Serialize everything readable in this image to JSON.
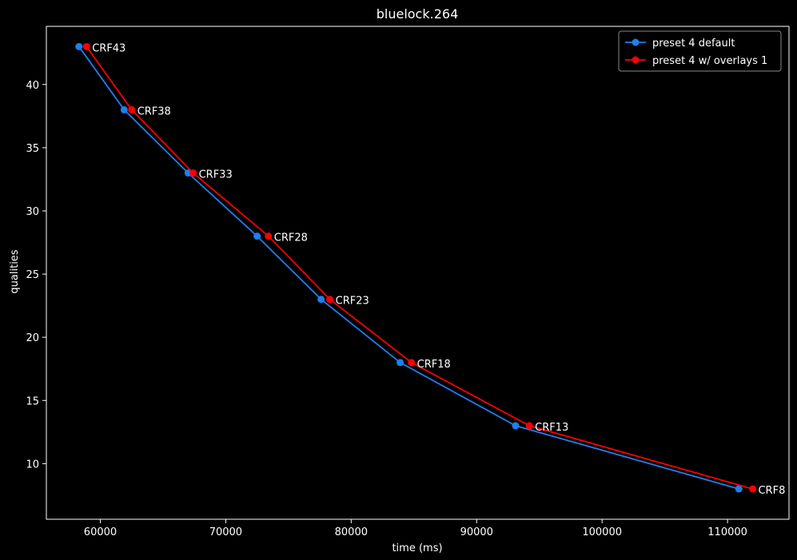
{
  "chart_data": {
    "type": "line",
    "title": "bluelock.264",
    "xlabel": "time (ms)",
    "ylabel": "qualities",
    "xlim": [
      55700,
      114900
    ],
    "ylim": [
      5.6,
      44.6
    ],
    "xticks": [
      60000,
      70000,
      80000,
      90000,
      100000,
      110000
    ],
    "yticks": [
      10,
      15,
      20,
      25,
      30,
      35,
      40
    ],
    "grid": false,
    "legend_position": "top-right",
    "series": [
      {
        "name": "preset 4 default",
        "color": "#1f7fef",
        "x": [
          58300,
          61900,
          67000,
          72500,
          77600,
          83900,
          93100,
          110900
        ],
        "y": [
          43,
          38,
          33,
          28,
          23,
          18,
          13,
          8
        ]
      },
      {
        "name": "preset 4 w/ overlays 1",
        "color": "#ff0000",
        "x": [
          58900,
          62500,
          67400,
          73400,
          78300,
          84800,
          94200,
          112000
        ],
        "y": [
          43,
          38,
          33,
          28,
          23,
          18,
          13,
          8
        ]
      }
    ],
    "annotations": [
      "CRF43",
      "CRF38",
      "CRF33",
      "CRF28",
      "CRF23",
      "CRF18",
      "CRF13",
      "CRF8"
    ]
  }
}
